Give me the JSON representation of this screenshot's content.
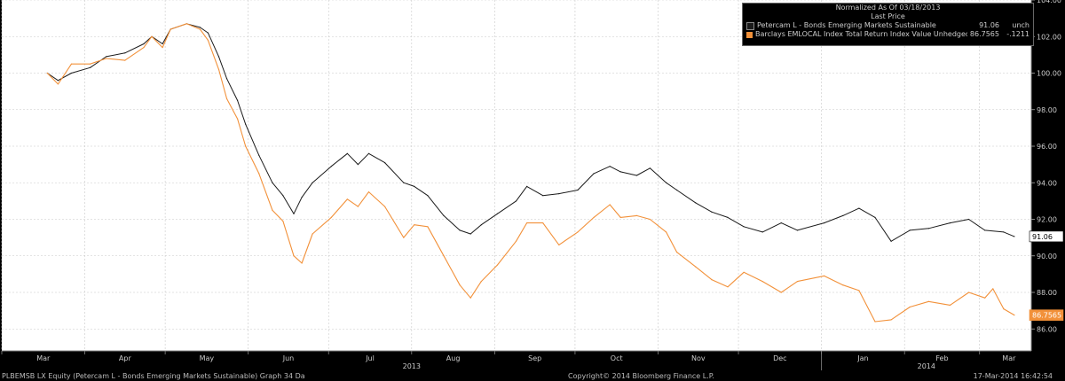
{
  "chart_data": {
    "type": "line",
    "ylim": [
      84.8,
      104.0
    ],
    "y_ticks": [
      "104.00",
      "102.00",
      "100.00",
      "98.00",
      "96.00",
      "94.00",
      "92.00",
      "90.00",
      "88.00",
      "86.00"
    ],
    "x_months": [
      "Mar",
      "Apr",
      "May",
      "Jun",
      "Jul",
      "Aug",
      "Sep",
      "Oct",
      "Nov",
      "Dec",
      "Jan",
      "Feb",
      "Mar"
    ],
    "year_labels": [
      "2013",
      "2014"
    ],
    "grid": true,
    "legend_position": "top-right",
    "legend_header": [
      "Normalized As Of 03/18/2013",
      "Last Price"
    ],
    "series": [
      {
        "name": "Petercam L - Bonds Emerging Markets Sustainable",
        "color": "#1a1a1a",
        "last_value": "91.06",
        "change": "unch",
        "end_label": "91.06",
        "values": [
          [
            "2013-03-18",
            100.0
          ],
          [
            "2013-03-22",
            99.6
          ],
          [
            "2013-03-27",
            100.0
          ],
          [
            "2013-04-03",
            100.3
          ],
          [
            "2013-04-09",
            100.9
          ],
          [
            "2013-04-16",
            101.1
          ],
          [
            "2013-04-23",
            101.6
          ],
          [
            "2013-04-26",
            102.0
          ],
          [
            "2013-04-30",
            101.6
          ],
          [
            "2013-05-03",
            102.4
          ],
          [
            "2013-05-09",
            102.7
          ],
          [
            "2013-05-14",
            102.5
          ],
          [
            "2013-05-17",
            102.2
          ],
          [
            "2013-05-21",
            100.9
          ],
          [
            "2013-05-24",
            99.7
          ],
          [
            "2013-05-28",
            98.5
          ],
          [
            "2013-05-31",
            97.2
          ],
          [
            "2013-06-05",
            95.5
          ],
          [
            "2013-06-10",
            94.0
          ],
          [
            "2013-06-14",
            93.3
          ],
          [
            "2013-06-18",
            92.3
          ],
          [
            "2013-06-21",
            93.2
          ],
          [
            "2013-06-25",
            94.0
          ],
          [
            "2013-07-02",
            94.9
          ],
          [
            "2013-07-08",
            95.6
          ],
          [
            "2013-07-12",
            95.0
          ],
          [
            "2013-07-16",
            95.6
          ],
          [
            "2013-07-22",
            95.1
          ],
          [
            "2013-07-29",
            94.0
          ],
          [
            "2013-08-02",
            93.8
          ],
          [
            "2013-08-07",
            93.3
          ],
          [
            "2013-08-13",
            92.2
          ],
          [
            "2013-08-19",
            91.4
          ],
          [
            "2013-08-23",
            91.2
          ],
          [
            "2013-08-27",
            91.7
          ],
          [
            "2013-09-02",
            92.3
          ],
          [
            "2013-09-09",
            93.0
          ],
          [
            "2013-09-13",
            93.8
          ],
          [
            "2013-09-19",
            93.3
          ],
          [
            "2013-09-25",
            93.4
          ],
          [
            "2013-10-02",
            93.6
          ],
          [
            "2013-10-08",
            94.5
          ],
          [
            "2013-10-14",
            94.9
          ],
          [
            "2013-10-18",
            94.6
          ],
          [
            "2013-10-24",
            94.4
          ],
          [
            "2013-10-29",
            94.8
          ],
          [
            "2013-11-04",
            94.0
          ],
          [
            "2013-11-08",
            93.6
          ],
          [
            "2013-11-15",
            92.9
          ],
          [
            "2013-11-21",
            92.4
          ],
          [
            "2013-11-27",
            92.1
          ],
          [
            "2013-12-03",
            91.6
          ],
          [
            "2013-12-10",
            91.3
          ],
          [
            "2013-12-17",
            91.8
          ],
          [
            "2013-12-23",
            91.4
          ],
          [
            "2014-01-02",
            91.8
          ],
          [
            "2014-01-09",
            92.2
          ],
          [
            "2014-01-15",
            92.6
          ],
          [
            "2014-01-21",
            92.1
          ],
          [
            "2014-01-27",
            90.8
          ],
          [
            "2014-02-03",
            91.4
          ],
          [
            "2014-02-10",
            91.5
          ],
          [
            "2014-02-18",
            91.8
          ],
          [
            "2014-02-25",
            92.0
          ],
          [
            "2014-03-03",
            91.4
          ],
          [
            "2014-03-10",
            91.3
          ],
          [
            "2014-03-14",
            91.06
          ]
        ]
      },
      {
        "name": "Barclays EMLOCAL Index Total Return Index Value Unhedged EUR",
        "color": "#f2913a",
        "last_value": "86.7565",
        "change": "-.1211",
        "end_label": "86.7565",
        "values": [
          [
            "2013-03-18",
            100.0
          ],
          [
            "2013-03-22",
            99.4
          ],
          [
            "2013-03-27",
            100.5
          ],
          [
            "2013-04-03",
            100.5
          ],
          [
            "2013-04-09",
            100.8
          ],
          [
            "2013-04-16",
            100.7
          ],
          [
            "2013-04-23",
            101.4
          ],
          [
            "2013-04-26",
            102.0
          ],
          [
            "2013-04-30",
            101.4
          ],
          [
            "2013-05-03",
            102.4
          ],
          [
            "2013-05-09",
            102.7
          ],
          [
            "2013-05-14",
            102.4
          ],
          [
            "2013-05-17",
            101.8
          ],
          [
            "2013-05-21",
            100.2
          ],
          [
            "2013-05-24",
            98.6
          ],
          [
            "2013-05-28",
            97.5
          ],
          [
            "2013-05-31",
            96.0
          ],
          [
            "2013-06-05",
            94.5
          ],
          [
            "2013-06-10",
            92.5
          ],
          [
            "2013-06-14",
            91.9
          ],
          [
            "2013-06-18",
            90.0
          ],
          [
            "2013-06-21",
            89.6
          ],
          [
            "2013-06-25",
            91.2
          ],
          [
            "2013-07-02",
            92.1
          ],
          [
            "2013-07-08",
            93.1
          ],
          [
            "2013-07-12",
            92.7
          ],
          [
            "2013-07-16",
            93.5
          ],
          [
            "2013-07-22",
            92.7
          ],
          [
            "2013-07-29",
            91.0
          ],
          [
            "2013-08-02",
            91.7
          ],
          [
            "2013-08-07",
            91.6
          ],
          [
            "2013-08-13",
            90.0
          ],
          [
            "2013-08-19",
            88.4
          ],
          [
            "2013-08-23",
            87.7
          ],
          [
            "2013-08-27",
            88.6
          ],
          [
            "2013-09-02",
            89.5
          ],
          [
            "2013-09-09",
            90.8
          ],
          [
            "2013-09-13",
            91.8
          ],
          [
            "2013-09-19",
            91.8
          ],
          [
            "2013-09-25",
            90.6
          ],
          [
            "2013-10-02",
            91.3
          ],
          [
            "2013-10-08",
            92.1
          ],
          [
            "2013-10-14",
            92.8
          ],
          [
            "2013-10-18",
            92.1
          ],
          [
            "2013-10-24",
            92.2
          ],
          [
            "2013-10-29",
            92.0
          ],
          [
            "2013-11-04",
            91.3
          ],
          [
            "2013-11-08",
            90.2
          ],
          [
            "2013-11-15",
            89.4
          ],
          [
            "2013-11-21",
            88.7
          ],
          [
            "2013-11-27",
            88.3
          ],
          [
            "2013-12-03",
            89.1
          ],
          [
            "2013-12-10",
            88.6
          ],
          [
            "2013-12-17",
            88.0
          ],
          [
            "2013-12-23",
            88.6
          ],
          [
            "2014-01-02",
            88.9
          ],
          [
            "2014-01-09",
            88.4
          ],
          [
            "2014-01-15",
            88.1
          ],
          [
            "2014-01-21",
            86.4
          ],
          [
            "2014-01-27",
            86.5
          ],
          [
            "2014-02-03",
            87.2
          ],
          [
            "2014-02-10",
            87.5
          ],
          [
            "2014-02-18",
            87.3
          ],
          [
            "2014-02-25",
            88.0
          ],
          [
            "2014-03-03",
            87.7
          ],
          [
            "2014-03-06",
            88.2
          ],
          [
            "2014-03-10",
            87.1
          ],
          [
            "2014-03-14",
            86.7565
          ]
        ]
      }
    ]
  },
  "footer": {
    "left": "PLBEMSB LX Equity (Petercam L - Bonds Emerging Markets Sustainable) Graph 34  Da",
    "center": "Copyright© 2014 Bloomberg Finance L.P.",
    "right": "17-Mar-2014 16:42:54"
  }
}
